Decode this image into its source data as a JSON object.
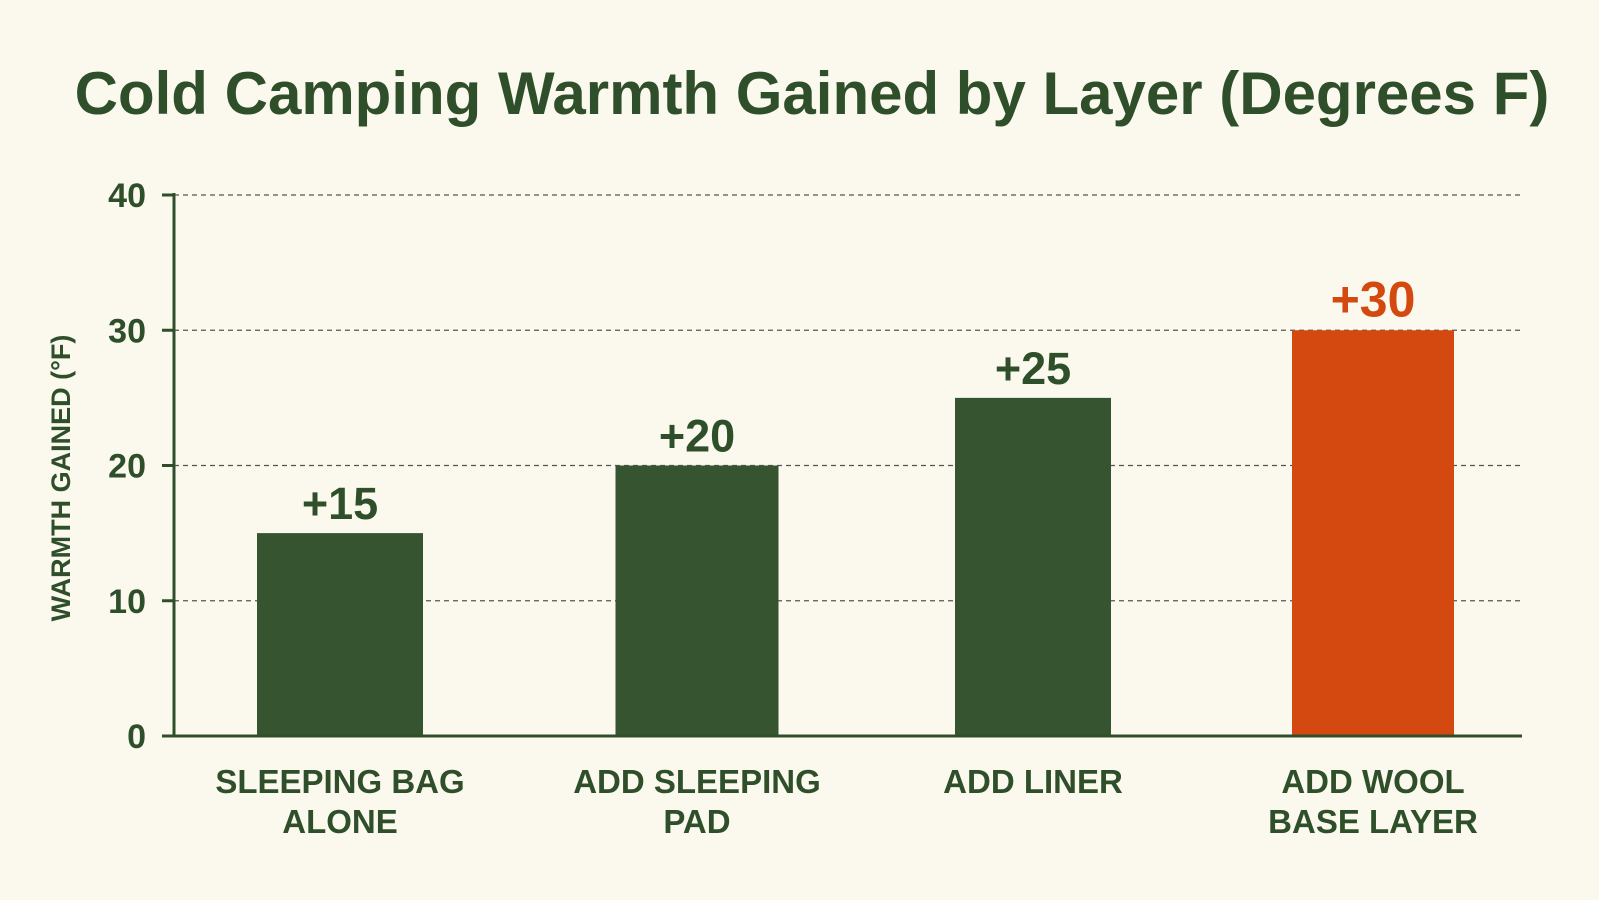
{
  "colors": {
    "background": "#fbf8ee",
    "text": "#2f4f2a",
    "bar": "#36542f",
    "highlight": "#d3490f",
    "grid": "#555555"
  },
  "chart_data": {
    "type": "bar",
    "title": "Cold Camping Warmth Gained by Layer (Degrees F)",
    "ylabel": "WARMTH GAINED (°F)",
    "xlabel": "",
    "ylim": [
      0,
      40
    ],
    "yticks": [
      "0",
      "10",
      "20",
      "30",
      "40"
    ],
    "grid": true,
    "categories": [
      [
        "SLEEPING BAG",
        "ALONE"
      ],
      [
        "ADD SLEEPING",
        "PAD"
      ],
      [
        "ADD LINER"
      ],
      [
        "ADD WOOL",
        "BASE LAYER"
      ]
    ],
    "values": [
      15,
      20,
      25,
      30
    ],
    "data_labels": [
      "+15",
      "+20",
      "+25",
      "+30"
    ],
    "highlight_index": 3
  }
}
